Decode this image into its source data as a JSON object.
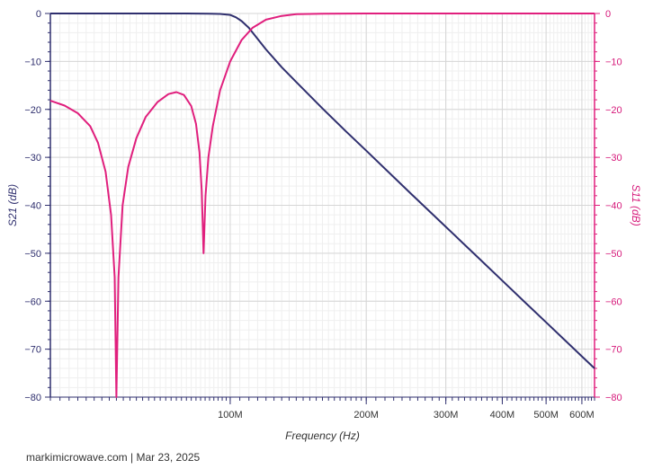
{
  "chart_data": {
    "type": "line",
    "x_scale": "log",
    "x_domain_hz": [
      40000000,
      640000000
    ],
    "xlabel": "Frequency (Hz)",
    "x_tick_labels": [
      {
        "value": 100000000,
        "label": "100M"
      },
      {
        "value": 200000000,
        "label": "200M"
      },
      {
        "value": 300000000,
        "label": "300M"
      },
      {
        "value": 400000000,
        "label": "400M"
      },
      {
        "value": 500000000,
        "label": "500M"
      },
      {
        "value": 600000000,
        "label": "600M"
      }
    ],
    "y_left": {
      "label": "S21 (dB)",
      "ylim": [
        -80,
        0
      ],
      "ticks": [
        0,
        -10,
        -20,
        -30,
        -40,
        -50,
        -60,
        -70,
        -80
      ],
      "color": "#2f2f6e"
    },
    "y_right": {
      "label": "S11 (dB)",
      "ylim": [
        -80,
        0
      ],
      "ticks": [
        0,
        -10,
        -20,
        -30,
        -40,
        -50,
        -60,
        -70,
        -80
      ],
      "color": "#e01f7d"
    },
    "grid": true,
    "series": [
      {
        "name": "S21",
        "axis": "left",
        "color": "#2f2f6e",
        "points": [
          [
            40000000,
            0
          ],
          [
            60000000,
            0
          ],
          [
            80000000,
            0
          ],
          [
            90000000,
            -0.05
          ],
          [
            95000000,
            -0.1
          ],
          [
            100000000,
            -0.3
          ],
          [
            103000000,
            -0.8
          ],
          [
            106000000,
            -1.6
          ],
          [
            110000000,
            -3
          ],
          [
            115000000,
            -5.3
          ],
          [
            120000000,
            -7.5
          ],
          [
            130000000,
            -11.2
          ],
          [
            140000000,
            -14.3
          ],
          [
            160000000,
            -19.8
          ],
          [
            180000000,
            -24.5
          ],
          [
            200000000,
            -28.6
          ],
          [
            250000000,
            -37.4
          ],
          [
            300000000,
            -44.5
          ],
          [
            350000000,
            -50.5
          ],
          [
            400000000,
            -55.7
          ],
          [
            450000000,
            -60.3
          ],
          [
            500000000,
            -64.4
          ],
          [
            550000000,
            -68.1
          ],
          [
            600000000,
            -71.5
          ],
          [
            640000000,
            -74
          ]
        ]
      },
      {
        "name": "S11",
        "axis": "right",
        "color": "#e01f7d",
        "points": [
          [
            40000000,
            -18.2
          ],
          [
            43000000,
            -19.2
          ],
          [
            46000000,
            -20.8
          ],
          [
            49000000,
            -23.5
          ],
          [
            51000000,
            -27
          ],
          [
            53000000,
            -33
          ],
          [
            54500000,
            -42
          ],
          [
            55500000,
            -55
          ],
          [
            56000000,
            -80
          ],
          [
            56600000,
            -55
          ],
          [
            57800000,
            -40
          ],
          [
            59500000,
            -32
          ],
          [
            62000000,
            -26
          ],
          [
            65000000,
            -21.6
          ],
          [
            69000000,
            -18.5
          ],
          [
            73000000,
            -16.8
          ],
          [
            76000000,
            -16.4
          ],
          [
            79000000,
            -17
          ],
          [
            82000000,
            -19.3
          ],
          [
            84000000,
            -23
          ],
          [
            85500000,
            -29
          ],
          [
            86500000,
            -37
          ],
          [
            87300000,
            -50
          ],
          [
            88200000,
            -38
          ],
          [
            89500000,
            -30
          ],
          [
            91500000,
            -23.5
          ],
          [
            95000000,
            -16
          ],
          [
            100000000,
            -10
          ],
          [
            106000000,
            -5.5
          ],
          [
            112000000,
            -3
          ],
          [
            120000000,
            -1.3
          ],
          [
            130000000,
            -0.5
          ],
          [
            140000000,
            -0.15
          ],
          [
            160000000,
            -0.05
          ],
          [
            200000000,
            0
          ],
          [
            640000000,
            0
          ]
        ]
      }
    ]
  },
  "footer": {
    "text": "markimicrowave.com | Mar 23, 2025"
  }
}
